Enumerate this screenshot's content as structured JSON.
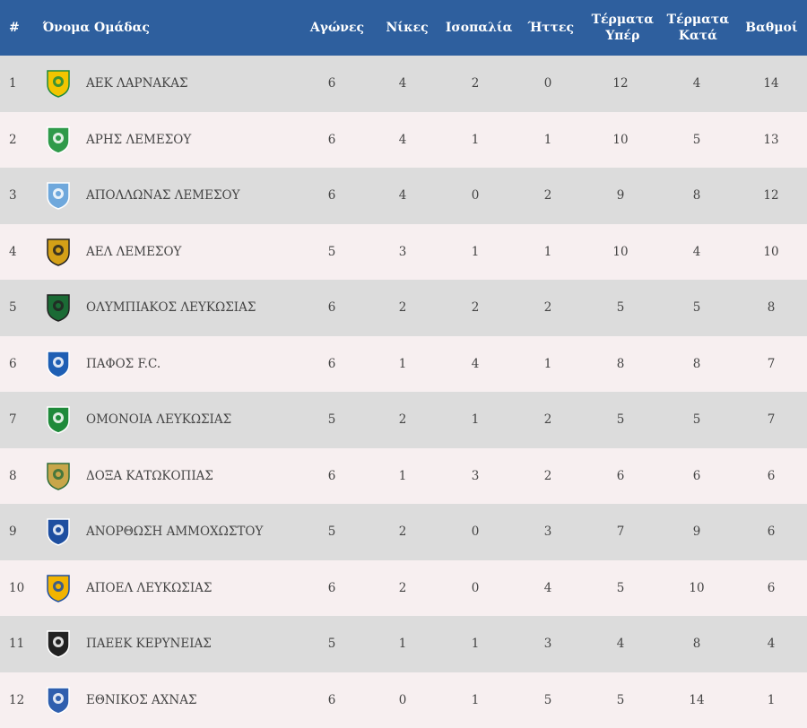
{
  "header": {
    "pos": "#",
    "team": "Όνομα Ομάδας",
    "played": "Αγώνες",
    "wins": "Νίκες",
    "draws": "Ισοπαλία",
    "losses": "Ήττες",
    "goals_for": "Τέρματα Υπέρ",
    "goals_against": "Τέρματα Κατά",
    "points": "Βαθμοί"
  },
  "rows": [
    {
      "pos": "1",
      "team": "ΑΕΚ ΛΑΡΝΑΚΑΣ",
      "played": "6",
      "wins": "4",
      "draws": "2",
      "losses": "0",
      "gf": "12",
      "ga": "4",
      "pts": "14"
    },
    {
      "pos": "2",
      "team": "ΑΡΗΣ ΛΕΜΕΣΟΥ",
      "played": "6",
      "wins": "4",
      "draws": "1",
      "losses": "1",
      "gf": "10",
      "ga": "5",
      "pts": "13"
    },
    {
      "pos": "3",
      "team": "ΑΠΟΛΛΩΝΑΣ ΛΕΜΕΣΟΥ",
      "played": "6",
      "wins": "4",
      "draws": "0",
      "losses": "2",
      "gf": "9",
      "ga": "8",
      "pts": "12"
    },
    {
      "pos": "4",
      "team": "ΑΕΛ ΛΕΜΕΣΟΥ",
      "played": "5",
      "wins": "3",
      "draws": "1",
      "losses": "1",
      "gf": "10",
      "ga": "4",
      "pts": "10"
    },
    {
      "pos": "5",
      "team": "ΟΛΥΜΠΙΑΚΟΣ ΛΕΥΚΩΣΙΑΣ",
      "played": "6",
      "wins": "2",
      "draws": "2",
      "losses": "2",
      "gf": "5",
      "ga": "5",
      "pts": "8"
    },
    {
      "pos": "6",
      "team": "ΠΑΦΟΣ F.C.",
      "played": "6",
      "wins": "1",
      "draws": "4",
      "losses": "1",
      "gf": "8",
      "ga": "8",
      "pts": "7"
    },
    {
      "pos": "7",
      "team": "ΟΜΟΝΟΙΑ ΛΕΥΚΩΣΙΑΣ",
      "played": "5",
      "wins": "2",
      "draws": "1",
      "losses": "2",
      "gf": "5",
      "ga": "5",
      "pts": "7"
    },
    {
      "pos": "8",
      "team": "ΔΟΞΑ ΚΑΤΩΚΟΠΙΑΣ",
      "played": "6",
      "wins": "1",
      "draws": "3",
      "losses": "2",
      "gf": "6",
      "ga": "6",
      "pts": "6"
    },
    {
      "pos": "9",
      "team": "ΑΝΟΡΘΩΣΗ ΑΜΜΟΧΩΣΤΟΥ",
      "played": "5",
      "wins": "2",
      "draws": "0",
      "losses": "3",
      "gf": "7",
      "ga": "9",
      "pts": "6"
    },
    {
      "pos": "10",
      "team": "ΑΠΟΕΛ ΛΕΥΚΩΣΙΑΣ",
      "played": "6",
      "wins": "2",
      "draws": "0",
      "losses": "4",
      "gf": "5",
      "ga": "10",
      "pts": "6"
    },
    {
      "pos": "11",
      "team": "ΠΑΕΕΚ ΚΕΡΥΝΕΙΑΣ",
      "played": "5",
      "wins": "1",
      "draws": "1",
      "losses": "3",
      "gf": "4",
      "ga": "8",
      "pts": "4"
    },
    {
      "pos": "12",
      "team": "ΕΘΝΙΚΟΣ ΑΧΝΑΣ",
      "played": "6",
      "wins": "0",
      "draws": "1",
      "losses": "5",
      "gf": "5",
      "ga": "14",
      "pts": "1"
    }
  ],
  "logos": [
    {
      "icon": "aek-larnaca-crest-icon",
      "primary": "#f2c500",
      "secondary": "#1f8a3a"
    },
    {
      "icon": "aris-limassol-crest-icon",
      "primary": "#2f9a4a",
      "secondary": "#ffffff"
    },
    {
      "icon": "apollon-limassol-crest-icon",
      "primary": "#6fa8dc",
      "secondary": "#ffffff"
    },
    {
      "icon": "ael-limassol-crest-icon",
      "primary": "#d4a017",
      "secondary": "#222222"
    },
    {
      "icon": "olympiakos-nicosia-crest-icon",
      "primary": "#1b6b35",
      "secondary": "#222222"
    },
    {
      "icon": "pafos-fc-crest-icon",
      "primary": "#1e5fb4",
      "secondary": "#ffffff"
    },
    {
      "icon": "omonia-nicosia-crest-icon",
      "primary": "#1f8a3a",
      "secondary": "#ffffff"
    },
    {
      "icon": "doxa-katokopias-crest-icon",
      "primary": "#c8a64a",
      "secondary": "#2f6e3a"
    },
    {
      "icon": "anorthosis-famagusta-crest-icon",
      "primary": "#1e4fa0",
      "secondary": "#ffffff"
    },
    {
      "icon": "apoel-nicosia-crest-icon",
      "primary": "#f2b400",
      "secondary": "#1e4fa0"
    },
    {
      "icon": "paeek-kyrenia-crest-icon",
      "primary": "#222222",
      "secondary": "#ffffff"
    },
    {
      "icon": "ethnikos-achna-crest-icon",
      "primary": "#2f5fae",
      "secondary": "#ffffff"
    }
  ],
  "colors": {
    "header_bg": "#2e5f9e",
    "row_odd": "#dcdcdc",
    "row_even": "#f7eff0"
  }
}
